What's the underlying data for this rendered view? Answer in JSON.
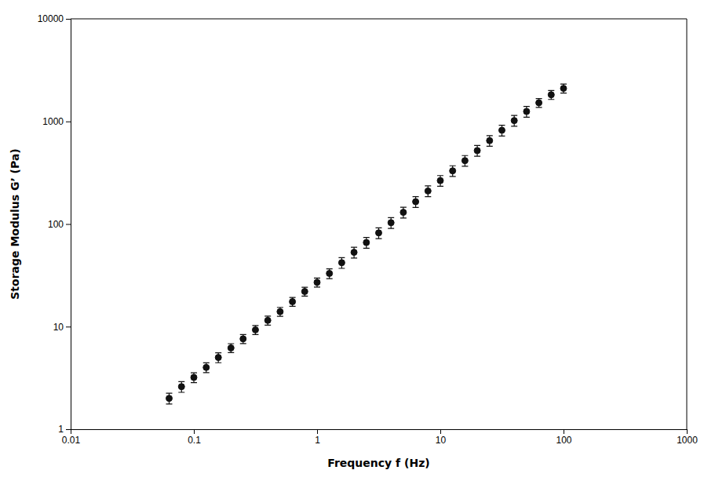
{
  "chart_data": {
    "type": "scatter",
    "xlabel": "Frequency f (Hz)",
    "ylabel": "Storage Modulus G’ (Pa)",
    "log": true,
    "grid": false,
    "marker": "circle",
    "color": "#111111",
    "xlim": [
      0.01,
      1000
    ],
    "ylim": [
      1,
      10000
    ],
    "xticks": [
      0.01,
      0.1,
      1,
      10,
      100,
      1000
    ],
    "yticks": [
      1,
      10,
      100,
      1000,
      10000
    ],
    "x": [
      0.063,
      0.0794,
      0.1,
      0.126,
      0.158,
      0.2,
      0.251,
      0.316,
      0.398,
      0.501,
      0.631,
      0.794,
      1.0,
      1.259,
      1.585,
      1.995,
      2.512,
      3.162,
      3.981,
      5.012,
      6.31,
      7.943,
      10.0,
      12.59,
      15.85,
      19.95,
      25.12,
      31.62,
      39.81,
      50.12,
      63.1,
      79.43,
      100.0
    ],
    "values": [
      2.0,
      2.6,
      3.2,
      4.0,
      5.0,
      6.2,
      7.6,
      9.3,
      11.5,
      14.0,
      17.5,
      22.0,
      27.0,
      33.0,
      42.0,
      53.0,
      66.0,
      82.0,
      103.0,
      130.0,
      165.0,
      210.0,
      265.0,
      330.0,
      415.0,
      520.0,
      650.0,
      820.0,
      1020.0,
      1250.0,
      1520.0,
      1820.0,
      2100.0
    ],
    "errors": [
      0.24,
      0.312,
      0.352,
      0.44,
      0.55,
      0.62,
      0.76,
      0.93,
      1.15,
      1.4,
      1.75,
      2.2,
      2.7,
      3.63,
      5.04,
      6.36,
      7.92,
      9.84,
      12.36,
      15.6,
      19.8,
      25.2,
      31.8,
      39.6,
      49.8,
      62.4,
      78,
      98.4,
      122.4,
      150,
      152,
      182,
      210
    ]
  }
}
